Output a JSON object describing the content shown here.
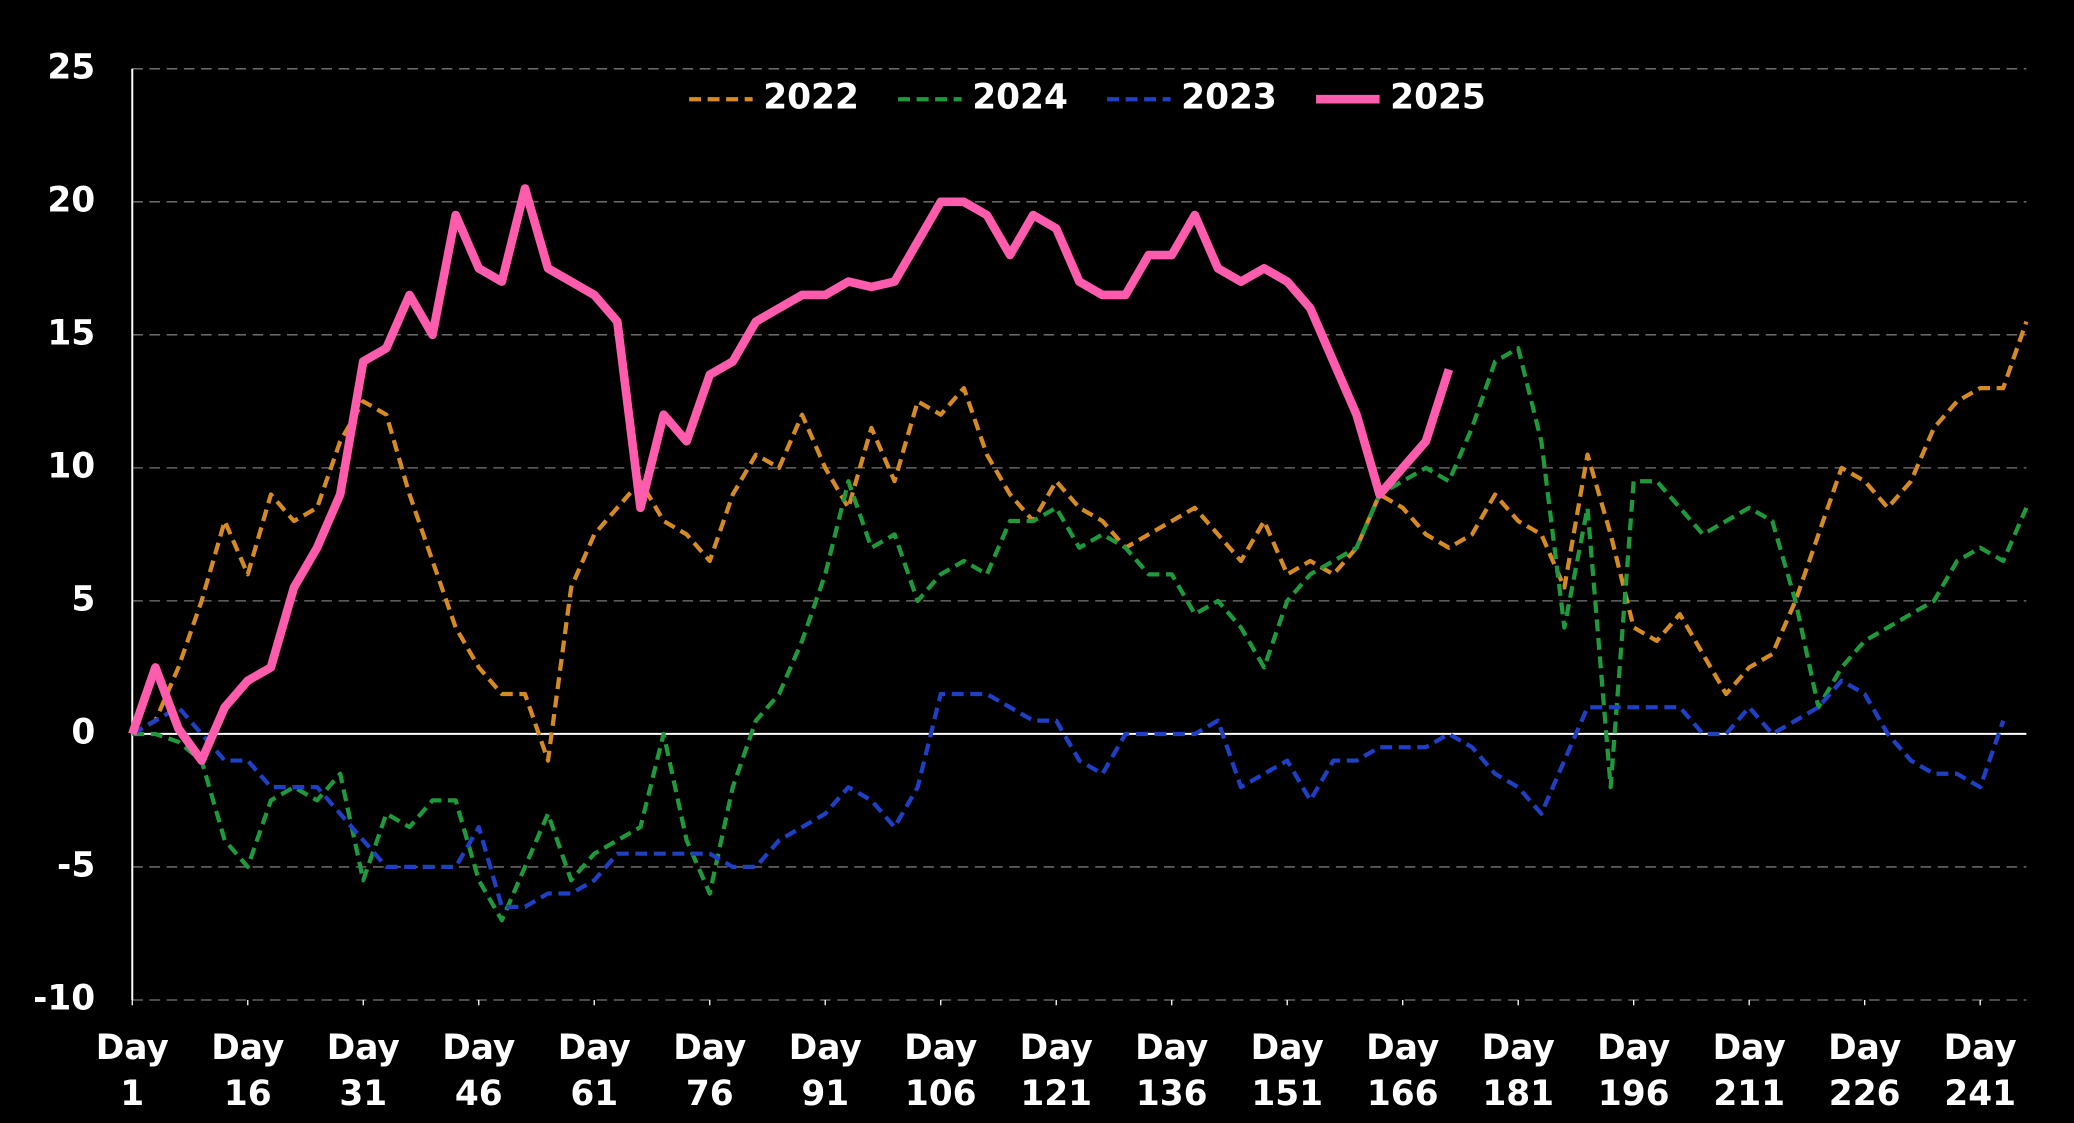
{
  "chart_data": {
    "type": "line",
    "x": [
      1,
      4,
      7,
      10,
      13,
      16,
      19,
      22,
      25,
      28,
      31,
      34,
      37,
      40,
      43,
      46,
      49,
      52,
      55,
      58,
      61,
      64,
      67,
      70,
      73,
      76,
      79,
      82,
      85,
      88,
      91,
      94,
      97,
      100,
      103,
      106,
      109,
      112,
      115,
      118,
      121,
      124,
      127,
      130,
      133,
      136,
      139,
      142,
      145,
      148,
      151,
      154,
      157,
      160,
      163,
      166,
      169,
      172,
      175,
      178,
      181,
      184,
      187,
      190,
      193,
      196,
      199,
      202,
      205,
      208,
      211,
      214,
      217,
      220,
      223,
      226,
      229,
      232,
      235,
      238,
      241,
      244,
      247
    ],
    "xlim": [
      1,
      247
    ],
    "xticks": [
      {
        "value": 1,
        "label": "Day 1"
      },
      {
        "value": 16,
        "label": "Day 16"
      },
      {
        "value": 31,
        "label": "Day 31"
      },
      {
        "value": 46,
        "label": "Day 46"
      },
      {
        "value": 61,
        "label": "Day 61"
      },
      {
        "value": 76,
        "label": "Day 76"
      },
      {
        "value": 91,
        "label": "Day 91"
      },
      {
        "value": 106,
        "label": "Day 106"
      },
      {
        "value": 121,
        "label": "Day 121"
      },
      {
        "value": 136,
        "label": "Day 136"
      },
      {
        "value": 151,
        "label": "Day 151"
      },
      {
        "value": 166,
        "label": "Day 166"
      },
      {
        "value": 181,
        "label": "Day 181"
      },
      {
        "value": 196,
        "label": "Day 196"
      },
      {
        "value": 211,
        "label": "Day 211"
      },
      {
        "value": 226,
        "label": "Day 226"
      },
      {
        "value": 241,
        "label": "Day 241"
      }
    ],
    "ylim": [
      -10,
      25
    ],
    "yticks": [
      -10,
      -5,
      0,
      5,
      10,
      15,
      20,
      25
    ],
    "grid": true,
    "legend": "top",
    "series": [
      {
        "name": "2022",
        "color": "#d68a22",
        "line_style": "dashed",
        "values": [
          0,
          0.5,
          2.5,
          5,
          8,
          6,
          9,
          8,
          8.5,
          11,
          12.5,
          12,
          9,
          6.5,
          4,
          2.5,
          1.5,
          1.5,
          -1,
          5.5,
          7.5,
          8.5,
          9.5,
          8,
          7.5,
          6.5,
          9,
          10.5,
          10,
          12,
          10,
          8.5,
          11.5,
          9.5,
          12.5,
          12,
          13,
          10.5,
          9,
          8,
          9.5,
          8.5,
          8,
          7,
          7.5,
          8,
          8.5,
          7.5,
          6.5,
          8,
          6,
          6.5,
          6,
          7,
          9,
          8.5,
          7.5,
          7,
          7.5,
          9,
          8,
          7.5,
          5.5,
          10.5,
          7.5,
          4,
          3.5,
          4.5,
          3,
          1.5,
          2.5,
          3,
          5,
          7.5,
          10,
          9.5,
          8.5,
          9.5,
          11.5,
          12.5,
          13,
          13,
          15.5
        ]
      },
      {
        "name": "2024",
        "color": "#1e9a3c",
        "line_style": "dashed",
        "values": [
          0,
          0,
          -0.3,
          -1,
          -4,
          -5,
          -2.5,
          -2,
          -2.5,
          -1.5,
          -5.5,
          -3,
          -3.5,
          -2.5,
          -2.5,
          -5.5,
          -7,
          -5,
          -3,
          -5.5,
          -4.5,
          -4,
          -3.5,
          0,
          -4,
          -6,
          -2,
          0.5,
          1.5,
          3.5,
          6,
          9.5,
          7,
          7.5,
          5,
          6,
          6.5,
          6,
          8,
          8,
          8.5,
          7,
          7.5,
          7,
          6,
          6,
          4.5,
          5,
          4,
          2.5,
          5,
          6,
          6.5,
          7,
          9,
          9.5,
          10,
          9.5,
          11.5,
          14,
          14.5,
          11,
          4,
          8.5,
          -2,
          9.5,
          9.5,
          8.5,
          7.5,
          8,
          8.5,
          8,
          5,
          1,
          2.5,
          3.5,
          4,
          4.5,
          5,
          6.5,
          7,
          6.5,
          8.5
        ]
      },
      {
        "name": "2023",
        "color": "#1f3fc4",
        "line_style": "dashed",
        "values": [
          0,
          0.5,
          1,
          0,
          -1,
          -1,
          -2,
          -2,
          -2,
          -3,
          -4,
          -5,
          -5,
          -5,
          -5,
          -3.5,
          -6.5,
          -6.5,
          -6,
          -6,
          -5.5,
          -4.5,
          -4.5,
          -4.5,
          -4.5,
          -4.5,
          -5,
          -5,
          -4,
          -3.5,
          -3,
          -2,
          -2.5,
          -3.5,
          -2,
          1.5,
          1.5,
          1.5,
          1,
          0.5,
          0.5,
          -1,
          -1.5,
          0,
          0,
          0,
          0,
          0.5,
          -2,
          -1.5,
          -1,
          -2.5,
          -1,
          -1,
          -0.5,
          -0.5,
          -0.5,
          0,
          -0.5,
          -1.5,
          -2,
          -3,
          -1,
          1,
          1,
          1,
          1,
          1,
          0,
          0,
          1,
          0,
          0.5,
          1,
          2,
          1.5,
          0,
          -1,
          -1.5,
          -1.5,
          -2,
          0.5,
          null
        ]
      },
      {
        "name": "2025",
        "color": "#ff5cae",
        "line_style": "solid",
        "values": [
          0,
          2.5,
          0.2,
          -1,
          1,
          2,
          2.5,
          5.5,
          7,
          9,
          14,
          14.5,
          16.5,
          15,
          19.5,
          17.5,
          17,
          20.5,
          17.5,
          17,
          16.5,
          15.5,
          8.5,
          12,
          11,
          13.5,
          14,
          15.5,
          16,
          16.5,
          16.5,
          17,
          16.8,
          17,
          18.5,
          20,
          20,
          19.5,
          18,
          19.5,
          19,
          17,
          16.5,
          16.5,
          18,
          18,
          19.5,
          17.5,
          17,
          17.5,
          17,
          16,
          14,
          12,
          9,
          10,
          11,
          13.7,
          null,
          null,
          null,
          null,
          null,
          null,
          null,
          null,
          null,
          null,
          null,
          null,
          null,
          null,
          null,
          null,
          null,
          null,
          null,
          null,
          null,
          null,
          null,
          null,
          null
        ]
      }
    ]
  }
}
